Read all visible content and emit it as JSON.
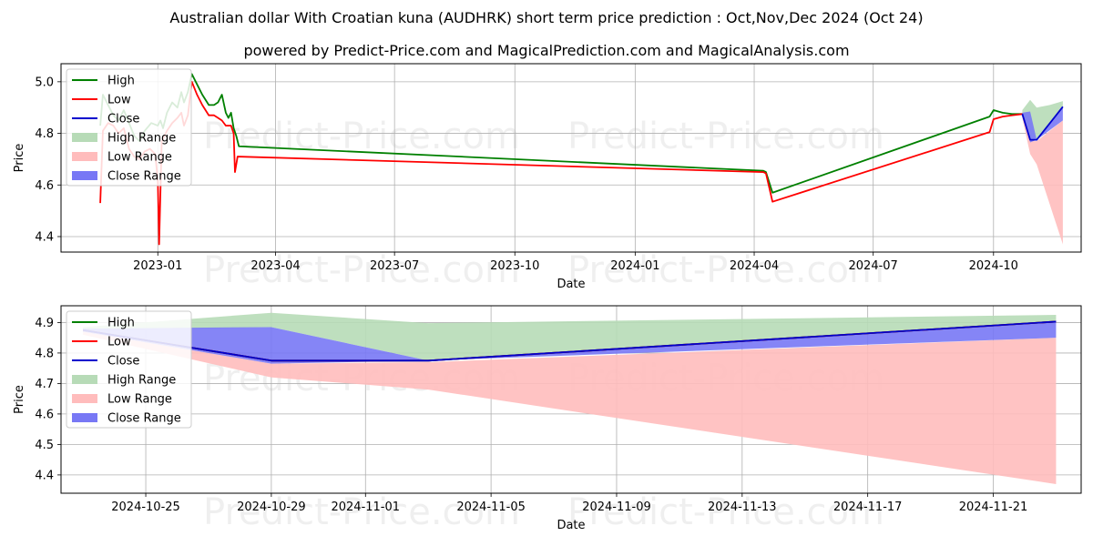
{
  "header": {
    "title": "Australian dollar With Croatian kuna (AUDHRK) short term price prediction : Oct,Nov,Dec 2024 (Oct 24)",
    "subtitle": "powered by Predict-Price.com and MagicalPrediction.com and MagicalAnalysis.com"
  },
  "watermark": "Predict-Price.com",
  "colors": {
    "high": "#008000",
    "low": "#ff0000",
    "close": "#0000cd",
    "high_range": "#b7dbb7",
    "low_range": "#ffbcbc",
    "close_range": "#7878f5",
    "grid": "#b0b0b0"
  },
  "chart_data": [
    {
      "type": "line",
      "title": "",
      "xlabel": "Date",
      "ylabel": "Price",
      "xlim": [
        "2022-10-19",
        "2024-12-07"
      ],
      "ylim": [
        4.34,
        5.07
      ],
      "grid": true,
      "legend_position": "top-left",
      "x_ticks": [
        "2023-01",
        "2023-04",
        "2023-07",
        "2023-10",
        "2024-01",
        "2024-04",
        "2024-07",
        "2024-10"
      ],
      "y_ticks": [
        4.4,
        4.6,
        4.8,
        5.0
      ],
      "legend": [
        "High",
        "Low",
        "Close",
        "High Range",
        "Low Range",
        "Close Range"
      ],
      "series": [
        {
          "name": "High",
          "x": [
            "2022-11-18",
            "2022-11-20",
            "2022-11-24",
            "2022-11-28",
            "2022-12-02",
            "2022-12-06",
            "2022-12-10",
            "2022-12-14",
            "2022-12-18",
            "2022-12-22",
            "2022-12-27",
            "2023-01-01",
            "2023-01-03",
            "2023-01-05",
            "2023-01-08",
            "2023-01-12",
            "2023-01-16",
            "2023-01-19",
            "2023-01-21",
            "2023-01-24",
            "2023-01-27",
            "2023-01-31",
            "2023-02-04",
            "2023-02-09",
            "2023-02-13",
            "2023-02-16",
            "2023-02-19",
            "2023-02-22",
            "2023-02-24",
            "2023-02-26",
            "2023-02-28",
            "2023-03-02",
            "2023-03-04",
            "2024-04-08",
            "2024-04-10",
            "2024-04-15",
            "2024-09-28",
            "2024-10-01",
            "2024-10-08",
            "2024-10-15",
            "2024-10-23"
          ],
          "values": [
            4.83,
            4.95,
            4.91,
            4.87,
            4.85,
            4.89,
            4.84,
            4.79,
            4.77,
            4.81,
            4.84,
            4.83,
            4.85,
            4.82,
            4.88,
            4.92,
            4.9,
            4.96,
            4.92,
            4.96,
            5.03,
            4.99,
            4.95,
            4.91,
            4.91,
            4.92,
            4.95,
            4.88,
            4.86,
            4.88,
            4.82,
            4.79,
            4.75,
            4.655,
            4.65,
            4.57,
            4.865,
            4.89,
            4.88,
            4.875,
            4.875
          ]
        },
        {
          "name": "Low",
          "x": [
            "2022-11-18",
            "2022-11-20",
            "2022-11-24",
            "2022-11-28",
            "2022-12-02",
            "2022-12-06",
            "2022-12-10",
            "2022-12-14",
            "2022-12-18",
            "2022-12-22",
            "2022-12-26",
            "2022-12-30",
            "2023-01-01",
            "2023-01-02",
            "2023-01-04",
            "2023-01-08",
            "2023-01-12",
            "2023-01-16",
            "2023-01-19",
            "2023-01-21",
            "2023-01-24",
            "2023-01-27",
            "2023-01-31",
            "2023-02-04",
            "2023-02-09",
            "2023-02-13",
            "2023-02-16",
            "2023-02-19",
            "2023-02-22",
            "2023-02-26",
            "2023-02-28",
            "2023-03-01",
            "2023-03-03",
            "2024-04-08",
            "2024-04-10",
            "2024-04-15",
            "2024-09-28",
            "2024-10-01",
            "2024-10-08",
            "2024-10-15",
            "2024-10-23"
          ],
          "values": [
            4.53,
            4.81,
            4.84,
            4.83,
            4.8,
            4.82,
            4.74,
            4.71,
            4.7,
            4.73,
            4.74,
            4.72,
            4.62,
            4.37,
            4.77,
            4.81,
            4.84,
            4.86,
            4.88,
            4.83,
            4.87,
            5.0,
            4.95,
            4.91,
            4.87,
            4.87,
            4.86,
            4.85,
            4.83,
            4.83,
            4.8,
            4.65,
            4.71,
            4.65,
            4.645,
            4.535,
            4.805,
            4.855,
            4.865,
            4.87,
            4.875
          ]
        },
        {
          "name": "Close",
          "x": [
            "2024-10-23",
            "2024-10-29",
            "2024-11-03",
            "2024-11-23"
          ],
          "values": [
            4.875,
            4.775,
            4.775,
            4.903
          ]
        }
      ],
      "ranges": [
        {
          "name": "High Range",
          "x": [
            "2024-10-23",
            "2024-10-29",
            "2024-11-03",
            "2024-11-13",
            "2024-11-23"
          ],
          "upper": [
            4.89,
            4.93,
            4.9,
            4.91,
            4.925
          ],
          "lower": [
            4.87,
            4.775,
            4.775,
            4.84,
            4.9
          ]
        },
        {
          "name": "Low Range",
          "x": [
            "2024-10-23",
            "2024-10-29",
            "2024-11-03",
            "2024-11-23"
          ],
          "upper": [
            4.87,
            4.77,
            4.77,
            4.85
          ],
          "lower": [
            4.86,
            4.72,
            4.68,
            4.37
          ]
        },
        {
          "name": "Close Range",
          "x": [
            "2024-10-23",
            "2024-10-29",
            "2024-11-03",
            "2024-11-23"
          ],
          "upper": [
            4.88,
            4.885,
            4.775,
            4.903
          ],
          "lower": [
            4.87,
            4.765,
            4.775,
            4.85
          ]
        }
      ]
    },
    {
      "type": "line",
      "title": "",
      "xlabel": "Date",
      "ylabel": "Price",
      "xlim": [
        "2024-10-22.3",
        "2024-11-23.8"
      ],
      "ylim": [
        4.34,
        4.955
      ],
      "grid": true,
      "legend_position": "top-left",
      "x_ticks": [
        "2024-10-25",
        "2024-10-29",
        "2024-11-01",
        "2024-11-05",
        "2024-11-09",
        "2024-11-13",
        "2024-11-17",
        "2024-11-21"
      ],
      "y_ticks": [
        4.4,
        4.5,
        4.6,
        4.7,
        4.8,
        4.9
      ],
      "legend": [
        "High",
        "Low",
        "Close",
        "High Range",
        "Low Range",
        "Close Range"
      ],
      "series": [
        {
          "name": "High",
          "x": [
            "2024-10-23",
            "2024-10-29",
            "2024-11-03",
            "2024-11-23"
          ],
          "values": [
            4.875,
            4.775,
            4.775,
            4.903
          ]
        },
        {
          "name": "Low",
          "x": [
            "2024-10-23",
            "2024-10-29",
            "2024-11-03",
            "2024-11-23"
          ],
          "values": [
            4.875,
            4.775,
            4.775,
            4.903
          ]
        },
        {
          "name": "Close",
          "x": [
            "2024-10-23",
            "2024-10-29",
            "2024-11-03",
            "2024-11-23"
          ],
          "values": [
            4.875,
            4.775,
            4.775,
            4.903
          ]
        }
      ],
      "ranges": [
        {
          "name": "High Range",
          "x": [
            "2024-10-23",
            "2024-10-29",
            "2024-11-03",
            "2024-11-23"
          ],
          "upper": [
            4.885,
            4.932,
            4.898,
            4.925
          ],
          "lower": [
            4.87,
            4.885,
            4.775,
            4.903
          ]
        },
        {
          "name": "Low Range",
          "x": [
            "2024-10-23",
            "2024-10-29",
            "2024-11-03",
            "2024-11-23"
          ],
          "upper": [
            4.87,
            4.765,
            4.77,
            4.85
          ],
          "lower": [
            4.86,
            4.72,
            4.68,
            4.37
          ]
        },
        {
          "name": "Close Range",
          "x": [
            "2024-10-23",
            "2024-10-29",
            "2024-11-03",
            "2024-11-23"
          ],
          "upper": [
            4.88,
            4.885,
            4.775,
            4.903
          ],
          "lower": [
            4.87,
            4.765,
            4.775,
            4.85
          ]
        }
      ]
    }
  ]
}
